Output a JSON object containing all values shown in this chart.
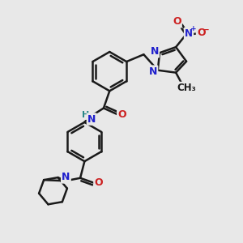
{
  "bg_color": "#e8e8e8",
  "bond_color": "#1a1a1a",
  "bond_width": 1.8,
  "atom_colors": {
    "N": "#2020cc",
    "O": "#cc2020",
    "H": "#2a8888",
    "C": "#1a1a1a"
  },
  "font_size_atom": 9,
  "font_size_small": 7.5
}
